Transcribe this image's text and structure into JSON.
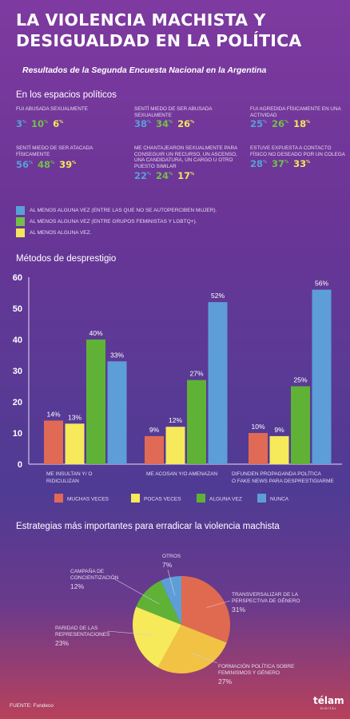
{
  "header": {
    "title_line1": "LA VIOLENCIA MACHISTA Y",
    "title_line2": "DESIGUALDAD EN LA POLÍTICA",
    "subtitle": "Resultados de la Segunda Encuesta Nacional en la Argentina"
  },
  "spaces": {
    "heading": "En los espacios políticos",
    "stats": [
      {
        "label": "FUI ABUSADA SEXUALMENTE",
        "values": [
          "3",
          "10",
          "6"
        ]
      },
      {
        "label": "SENTÍ MIEDO DE SER ABUSADA SEXUALMENTE",
        "values": [
          "38",
          "34",
          "26"
        ]
      },
      {
        "label": "FUI AGREDIDA FÍSICAMENTE EN UNA ACTIVIDAD",
        "values": [
          "25",
          "26",
          "18"
        ]
      },
      {
        "label": "SENTÍ MIEDO DE SER ATACADA FÍSICAMENTE",
        "values": [
          "56",
          "48",
          "39"
        ]
      },
      {
        "label": "ME CHANTAJEARON SEXUALMENTE PARA CONSEGUIR UN RECURSO, UN ASCENSO, UNA CANDIDATURA, UN CARGO U OTRO PUESTO SIMILAR",
        "values": [
          "22",
          "24",
          "17"
        ]
      },
      {
        "label": "ESTUVE EXPUESTA A CONTACTO FÍSICO NO DESEADO POR UN COLEGA",
        "values": [
          "28",
          "37",
          "33"
        ]
      }
    ],
    "pct_symbol": "%",
    "legend": [
      {
        "label": "AL MENOS ALGUNA VEZ (ENTRE LAS QUE NO SE AUTOPERCIBEN MUJER).",
        "color": "#5aa0d8"
      },
      {
        "label": "AL MENOS ALGUNA VEZ (ENTRE GRUPOS FEMINISTAS Y LGBTQ+).",
        "color": "#72c04a"
      },
      {
        "label": "AL MENOS ALGUNA VEZ.",
        "color": "#f3e65a"
      }
    ]
  },
  "methods": {
    "heading": "Métodos de desprestigio"
  },
  "strategies": {
    "heading": "Estrategias más importantes para erradicar la violencia machista"
  },
  "footer": {
    "source": "FUENTE: Fundeco",
    "logo_main": "télam",
    "logo_sub": "DIGITAL"
  },
  "chart_data": [
    {
      "type": "bar",
      "title": "Métodos de desprestigio",
      "categories": [
        "ME INSULTAN Y/O RIDICULIZAN",
        "ME ACOSAN Y/O AMENAZAN",
        "DIFUNDEN PROPAGANDA POLÍTICA O FAKE NEWS PARA DESPRESTIGIARME"
      ],
      "category_lines": [
        [
          "ME INSULTAN Y/ O",
          "RIDICULIZAN"
        ],
        [
          "ME ACOSAN Y/O AMENAZAN"
        ],
        [
          "DIFUNDEN PROPAGANDA POLÍTICA",
          "O FAKE NEWS PARA DESPRESTIGIARME"
        ]
      ],
      "series": [
        {
          "name": "MUCHAS VECES",
          "color": "#e06a55",
          "values": [
            14,
            9,
            10
          ]
        },
        {
          "name": "POCAS VECES",
          "color": "#f6e95a",
          "values": [
            13,
            12,
            9
          ]
        },
        {
          "name": "ALGUNA VEZ",
          "color": "#5fb236",
          "values": [
            40,
            27,
            25
          ]
        },
        {
          "name": "NUNCA",
          "color": "#5e9ed8",
          "values": [
            33,
            52,
            56
          ]
        }
      ],
      "ylim": [
        0,
        60
      ],
      "yticks": [
        0,
        10,
        20,
        30,
        40,
        50,
        60
      ],
      "value_suffix": "%",
      "legend_position": "bottom",
      "grid": false
    },
    {
      "type": "pie",
      "title": "Estrategias más importantes para erradicar la violencia machista",
      "slices": [
        {
          "label": "TRANSVERSALIZAR DE LA PERSPECTIVA DE GÉNERO",
          "lines": [
            "TRANSVERSALIZAR DE LA",
            "PERSPECTIVA DE GÉNERO"
          ],
          "value": 31,
          "color": "#e06a4f"
        },
        {
          "label": "FORMACIÓN POLÍTICA SOBRE FEMINISMOS Y GÉNERO",
          "lines": [
            "FORMACIÓN POLÍTICA SOBRE",
            "FEMINISMOS Y GÉNERO"
          ],
          "value": 27,
          "color": "#f1c244"
        },
        {
          "label": "PARIDAD DE LAS REPRESENTACIONES",
          "lines": [
            "PARIDAD DE LAS",
            "REPRESENTACIONES"
          ],
          "value": 23,
          "color": "#f6e95a"
        },
        {
          "label": "CAMPAÑA DE CONCIENTIZACIÓN",
          "lines": [
            "CAMPAÑA DE",
            "CONCIENTIZACIÓN"
          ],
          "value": 12,
          "color": "#5fb236"
        },
        {
          "label": "OTROS",
          "lines": [
            "OTROS"
          ],
          "value": 7,
          "color": "#5e9ed8"
        }
      ],
      "value_suffix": "%"
    }
  ]
}
